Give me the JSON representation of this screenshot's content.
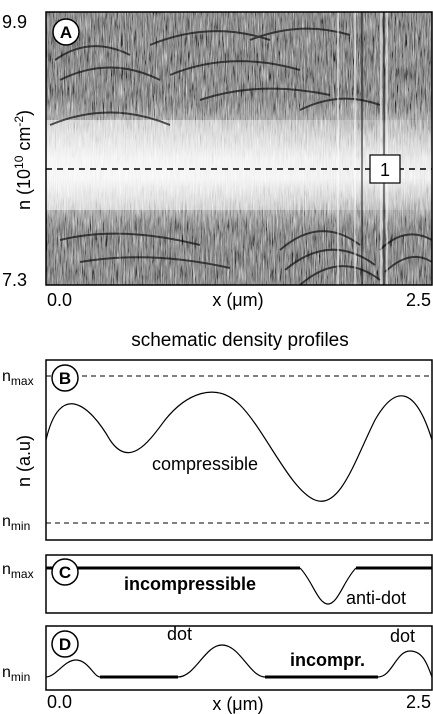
{
  "panel_a": {
    "letter": "A",
    "y_top": "9.9",
    "y_bottom": "7.3",
    "ylabel_main": "n (10",
    "ylabel_exp": "10",
    "ylabel_unit": " cm",
    "ylabel_unit_exp": "-2",
    "ylabel_close": ")",
    "marker": "1",
    "x_start": "0.0",
    "x_end": "2.5",
    "xlabel": "x (μm)"
  },
  "schematic_title": "schematic density profiles",
  "panel_b": {
    "letter": "B",
    "nmax": "n",
    "nmax_sub": "max",
    "nmin": "n",
    "nmin_sub": "min",
    "ylabel": "n (a.u)",
    "curve_label": "compressible"
  },
  "panel_c": {
    "letter": "C",
    "nmax": "n",
    "nmax_sub": "max",
    "label_main": "incompressible",
    "label_dip": "anti-dot"
  },
  "panel_d": {
    "letter": "D",
    "nmin": "n",
    "nmin_sub": "min",
    "dot_label_1": "dot",
    "dot_label_2": "dot",
    "label_main": "incompr.",
    "x_start": "0.0",
    "x_end": "2.5",
    "xlabel": "x (μm)"
  }
}
